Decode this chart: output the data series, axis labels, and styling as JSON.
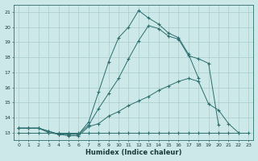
{
  "title": "",
  "xlabel": "Humidex (Indice chaleur)",
  "ylabel": "",
  "xlim": [
    -0.5,
    23.5
  ],
  "ylim": [
    12.5,
    21.5
  ],
  "xticks": [
    0,
    1,
    2,
    3,
    4,
    5,
    6,
    7,
    8,
    9,
    10,
    11,
    12,
    13,
    14,
    15,
    16,
    17,
    18,
    19,
    20,
    21,
    22,
    23
  ],
  "yticks": [
    13,
    14,
    15,
    16,
    17,
    18,
    19,
    20,
    21
  ],
  "bg_color": "#cce8e8",
  "line_color": "#2d6e6e",
  "grid_color": "#aacccc",
  "series": [
    {
      "x": [
        0,
        1,
        2,
        3,
        4,
        5,
        6,
        7,
        8,
        9,
        10,
        11,
        12,
        13,
        14,
        15,
        16,
        17,
        18,
        19,
        20,
        21,
        22,
        23
      ],
      "y": [
        13,
        13,
        13,
        13,
        13,
        13,
        13,
        13,
        13,
        13,
        13,
        13,
        13,
        13,
        13,
        13,
        13,
        13,
        13,
        13,
        13,
        13,
        13,
        13
      ]
    },
    {
      "x": [
        0,
        1,
        2,
        3,
        4,
        5,
        6,
        7,
        8,
        9,
        10,
        11,
        12,
        13,
        14,
        15,
        16,
        17,
        18,
        19,
        20,
        21,
        22,
        23
      ],
      "y": [
        13.3,
        13.3,
        13.3,
        13.0,
        12.9,
        12.8,
        12.8,
        13.4,
        13.6,
        14.1,
        14.4,
        14.8,
        15.1,
        15.4,
        15.8,
        16.1,
        16.4,
        16.6,
        16.4,
        14.9,
        14.5,
        13.6,
        13.0,
        null
      ]
    },
    {
      "x": [
        0,
        1,
        2,
        3,
        4,
        5,
        6,
        7,
        8,
        9,
        10,
        11,
        12,
        13,
        14,
        15,
        16,
        17,
        18,
        19,
        20
      ],
      "y": [
        13.3,
        13.3,
        13.3,
        13.1,
        12.9,
        12.9,
        12.9,
        13.5,
        14.6,
        15.6,
        16.6,
        17.9,
        19.1,
        20.1,
        19.9,
        19.4,
        19.2,
        18.1,
        17.9,
        17.6,
        13.5
      ]
    },
    {
      "x": [
        0,
        1,
        2,
        3,
        4,
        5,
        6,
        7,
        8,
        9,
        10,
        11,
        12,
        13,
        14,
        15,
        16,
        17,
        18
      ],
      "y": [
        13.3,
        13.3,
        13.3,
        13.1,
        12.9,
        12.9,
        12.9,
        13.7,
        15.7,
        17.7,
        19.3,
        20.0,
        21.1,
        20.6,
        20.2,
        19.6,
        19.3,
        18.2,
        16.6
      ]
    }
  ]
}
